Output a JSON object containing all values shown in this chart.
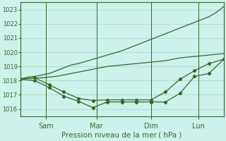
{
  "xlabel": "Pression niveau de la mer ( hPa )",
  "background_color": "#cff0eb",
  "grid_color": "#a0d4c8",
  "line_color": "#2d6b2d",
  "ylim": [
    1015.5,
    1023.5
  ],
  "yticks": [
    1016,
    1017,
    1018,
    1019,
    1020,
    1021,
    1022,
    1023
  ],
  "x_day_labels": [
    "Sam",
    "Mar",
    "Dim",
    "Lun"
  ],
  "num_points": 29,
  "line_smooth_upper": [
    1018.1,
    1018.25,
    1018.3,
    1018.4,
    1018.5,
    1018.7,
    1018.9,
    1019.1,
    1019.2,
    1019.35,
    1019.5,
    1019.65,
    1019.8,
    1019.95,
    1020.1,
    1020.3,
    1020.5,
    1020.7,
    1020.9,
    1021.1,
    1021.3,
    1021.5,
    1021.7,
    1021.9,
    1022.1,
    1022.3,
    1022.5,
    1022.8,
    1023.2
  ],
  "line_smooth_lower": [
    1018.1,
    1018.15,
    1018.18,
    1018.2,
    1018.25,
    1018.3,
    1018.4,
    1018.5,
    1018.6,
    1018.7,
    1018.8,
    1018.9,
    1019.0,
    1019.05,
    1019.1,
    1019.15,
    1019.2,
    1019.25,
    1019.3,
    1019.35,
    1019.4,
    1019.5,
    1019.6,
    1019.65,
    1019.7,
    1019.75,
    1019.8,
    1019.85,
    1019.9
  ],
  "line_marker1_x": [
    0,
    2,
    4,
    6,
    8,
    10,
    12,
    14,
    16,
    18,
    20,
    22,
    24,
    26,
    28
  ],
  "line_marker1_y": [
    1018.1,
    1018.0,
    1017.5,
    1016.9,
    1016.55,
    1016.1,
    1016.5,
    1016.5,
    1016.5,
    1016.5,
    1016.5,
    1017.1,
    1018.3,
    1018.5,
    1019.5
  ],
  "line_marker2_x": [
    0,
    2,
    4,
    6,
    8,
    10,
    12,
    14,
    16,
    18,
    20,
    22,
    24,
    26,
    28
  ],
  "line_marker2_y": [
    1018.1,
    1018.2,
    1017.7,
    1017.2,
    1016.75,
    1016.6,
    1016.65,
    1016.65,
    1016.65,
    1016.65,
    1017.2,
    1018.1,
    1018.7,
    1019.2,
    1019.5
  ]
}
